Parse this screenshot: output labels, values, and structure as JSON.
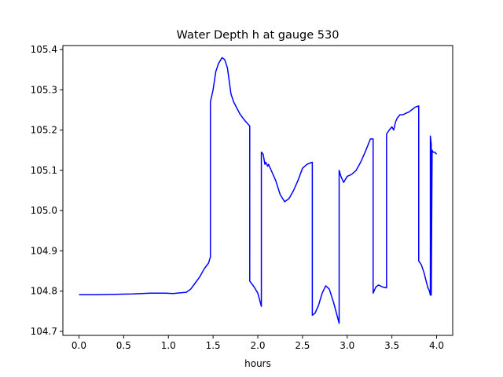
{
  "chart_data": {
    "type": "line",
    "title": "Water Depth h at gauge 530",
    "xlabel": "hours",
    "ylabel": "",
    "xlim": [
      -0.18,
      4.18
    ],
    "ylim": [
      104.69,
      105.41
    ],
    "grid": false,
    "x_ticks": [
      0.0,
      0.5,
      1.0,
      1.5,
      2.0,
      2.5,
      3.0,
      3.5,
      4.0
    ],
    "x_tick_labels": [
      "0.0",
      "0.5",
      "1.0",
      "1.5",
      "2.0",
      "2.5",
      "3.0",
      "3.5",
      "4.0"
    ],
    "y_ticks": [
      104.7,
      104.8,
      104.9,
      105.0,
      105.1,
      105.2,
      105.3,
      105.4
    ],
    "y_tick_labels": [
      "104.7",
      "104.8",
      "104.9",
      "105.0",
      "105.1",
      "105.2",
      "105.3",
      "105.4"
    ],
    "series": [
      {
        "color": "#0000ff",
        "x": [
          0.0,
          0.2,
          0.4,
          0.6,
          0.8,
          0.97,
          1.05,
          1.2,
          1.25,
          1.3,
          1.35,
          1.4,
          1.45,
          1.47,
          1.47,
          1.5,
          1.53,
          1.56,
          1.6,
          1.63,
          1.66,
          1.7,
          1.73,
          1.8,
          1.85,
          1.91,
          1.91,
          1.96,
          2.0,
          2.04,
          2.04,
          2.06,
          2.08,
          2.09,
          2.11,
          2.12,
          2.15,
          2.2,
          2.25,
          2.3,
          2.35,
          2.4,
          2.45,
          2.5,
          2.55,
          2.61,
          2.61,
          2.64,
          2.68,
          2.72,
          2.76,
          2.8,
          2.85,
          2.91,
          2.91,
          2.93,
          2.96,
          3.0,
          3.05,
          3.1,
          3.15,
          3.2,
          3.26,
          3.29,
          3.29,
          3.32,
          3.35,
          3.4,
          3.44,
          3.44,
          3.47,
          3.5,
          3.52,
          3.54,
          3.56,
          3.59,
          3.62,
          3.66,
          3.69,
          3.72,
          3.76,
          3.8,
          3.8,
          3.83,
          3.86,
          3.9,
          3.92,
          3.93,
          3.93,
          3.94,
          3.94,
          3.95,
          3.96,
          3.98,
          4.0
        ],
        "y": [
          104.791,
          104.791,
          104.792,
          104.793,
          104.795,
          104.795,
          104.794,
          104.797,
          104.805,
          104.82,
          104.835,
          104.855,
          104.87,
          104.885,
          105.27,
          105.3,
          105.345,
          105.365,
          105.38,
          105.375,
          105.355,
          105.29,
          105.27,
          105.24,
          105.225,
          105.21,
          104.825,
          104.81,
          104.795,
          104.762,
          105.145,
          105.14,
          105.115,
          105.12,
          105.11,
          105.115,
          105.1,
          105.075,
          105.04,
          105.022,
          105.03,
          105.05,
          105.075,
          105.105,
          105.115,
          105.12,
          104.74,
          104.745,
          104.765,
          104.795,
          104.813,
          104.805,
          104.77,
          104.72,
          105.1,
          105.085,
          105.07,
          105.085,
          105.09,
          105.1,
          105.12,
          105.145,
          105.178,
          105.178,
          104.795,
          104.81,
          104.815,
          104.81,
          104.808,
          105.19,
          105.2,
          105.208,
          105.2,
          105.22,
          105.23,
          105.238,
          105.238,
          105.242,
          105.245,
          105.25,
          105.257,
          105.26,
          104.875,
          104.865,
          104.845,
          104.81,
          104.8,
          104.79,
          105.185,
          105.165,
          104.79,
          105.15,
          105.145,
          105.145,
          105.14
        ]
      }
    ]
  }
}
